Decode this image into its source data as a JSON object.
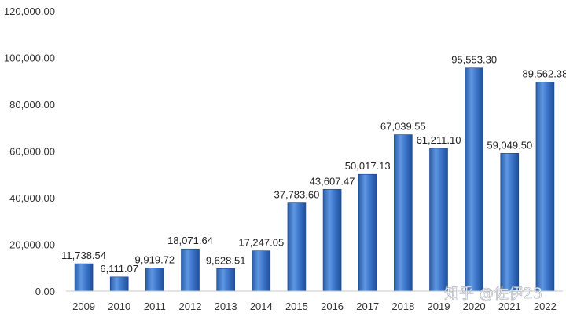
{
  "chart_data": {
    "type": "bar",
    "categories": [
      "2009",
      "2010",
      "2011",
      "2012",
      "2013",
      "2014",
      "2015",
      "2016",
      "2017",
      "2018",
      "2019",
      "2020",
      "2021",
      "2022"
    ],
    "values": [
      11738.54,
      6111.07,
      9919.72,
      18071.64,
      9628.51,
      17247.05,
      37783.6,
      43607.47,
      50017.13,
      67039.55,
      61211.1,
      95553.3,
      59049.5,
      89562.38
    ],
    "data_labels": [
      "11,738.54",
      "6,111.07",
      "9,919.72",
      "18,071.64",
      "9,628.51",
      "17,247.05",
      "37,783.60",
      "43,607.47",
      "50,017.13",
      "67,039.55",
      "61,211.10",
      "95,553.30",
      "59,049.50",
      "89,562.38"
    ],
    "yticks": [
      "0.00",
      "20,000.00",
      "40,000.00",
      "60,000.00",
      "80,000.00",
      "100,000.00",
      "120,000.00"
    ],
    "ylim": [
      0,
      120000
    ],
    "title": "",
    "xlabel": "",
    "ylabel": "",
    "grid": false,
    "legend": "none",
    "colors": {
      "bar_light": "#6f9fe0",
      "bar_mid": "#3a74c9",
      "bar_dark": "#1f4f9a",
      "axis": "#c8c8c8"
    }
  },
  "watermark": "知乎 @佐伊23"
}
